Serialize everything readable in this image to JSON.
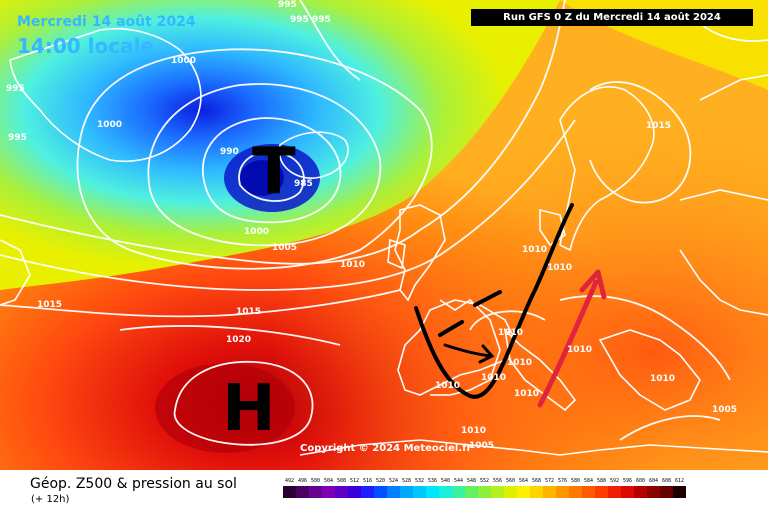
{
  "map": {
    "date_label": "Mercredi 14 août 2024",
    "time_label": "14:00 locale",
    "run_label": "Run GFS 0 Z du Mercredi 14 août 2024",
    "copyright": "Copyright © 2024 Meteociel.fr",
    "low_symbol": "T",
    "high_symbol": "H",
    "isobar_labels": [
      {
        "text": "995"
      },
      {
        "text": "995"
      },
      {
        "text": "995"
      },
      {
        "text": "995"
      },
      {
        "text": "995"
      },
      {
        "text": "1000"
      },
      {
        "text": "1000"
      },
      {
        "text": "990"
      },
      {
        "text": "985"
      },
      {
        "text": "1000"
      },
      {
        "text": "1005"
      },
      {
        "text": "1010"
      },
      {
        "text": "1015"
      },
      {
        "text": "1015"
      },
      {
        "text": "1020"
      },
      {
        "text": "1015"
      },
      {
        "text": "1010"
      },
      {
        "text": "1010"
      },
      {
        "text": "1010"
      },
      {
        "text": "1010"
      },
      {
        "text": "1010"
      },
      {
        "text": "1010"
      },
      {
        "text": "1010"
      },
      {
        "text": "1010"
      },
      {
        "text": "1010"
      },
      {
        "text": "1005"
      },
      {
        "text": "1005"
      },
      {
        "text": "1010"
      }
    ]
  },
  "footer": {
    "title": "Géop. Z500 & pression au sol",
    "subtitle": "(+ 12h)",
    "scale_values": [
      "492",
      "496",
      "500",
      "504",
      "508",
      "512",
      "516",
      "520",
      "524",
      "528",
      "532",
      "536",
      "540",
      "544",
      "548",
      "552",
      "556",
      "560",
      "564",
      "568",
      "572",
      "576",
      "580",
      "584",
      "588",
      "592",
      "596",
      "600",
      "604",
      "608",
      "612"
    ],
    "scale_colors": [
      "#2a0033",
      "#4a0060",
      "#6a0090",
      "#7d00b4",
      "#5e00c8",
      "#3a00dc",
      "#1e1eff",
      "#0050ff",
      "#0080ff",
      "#00a8ff",
      "#00c8ff",
      "#00e6ff",
      "#1af0dc",
      "#3cf0a0",
      "#64f064",
      "#8cf03c",
      "#b4f01e",
      "#dcf000",
      "#fff000",
      "#ffd200",
      "#ffb400",
      "#ff9600",
      "#ff7800",
      "#ff5a00",
      "#ff3c00",
      "#f01e00",
      "#dc0a00",
      "#b40000",
      "#8c0000",
      "#640000",
      "#1e0000"
    ]
  }
}
